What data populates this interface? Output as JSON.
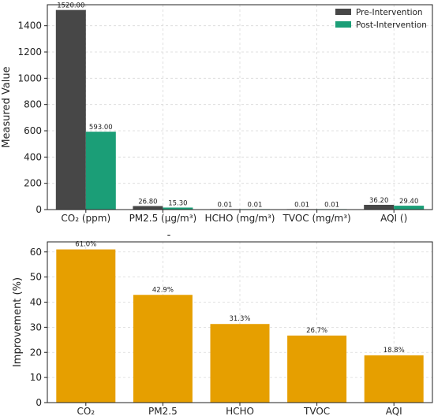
{
  "chart_data": [
    {
      "type": "bar",
      "categories": [
        "CO₂ (ppm)",
        "PM2.5 (µg/m³)",
        "HCHO (mg/m³)",
        "TVOC (mg/m³)",
        "AQI ()"
      ],
      "series": [
        {
          "name": "Pre-Intervention",
          "color": "#474747",
          "values": [
            1520.0,
            26.8,
            0.01,
            0.01,
            36.2
          ],
          "labels": [
            "1520.00",
            "26.80",
            "0.01",
            "0.01",
            "36.20"
          ]
        },
        {
          "name": "Post-Intervention",
          "color": "#1b9e77",
          "values": [
            593.0,
            15.3,
            0.01,
            0.01,
            29.4
          ],
          "labels": [
            "593.00",
            "15.30",
            "0.01",
            "0.01",
            "29.40"
          ]
        }
      ],
      "ylabel": "Measured Value",
      "ylim": [
        0,
        1560
      ],
      "yticks": [
        0,
        200,
        400,
        600,
        800,
        1000,
        1200,
        1400
      ],
      "grid": true,
      "legend": "top-right"
    },
    {
      "type": "bar",
      "title": "-",
      "categories": [
        "CO₂",
        "PM2.5",
        "HCHO",
        "TVOC",
        "AQI"
      ],
      "values": [
        61.0,
        42.9,
        31.3,
        26.7,
        18.8
      ],
      "labels": [
        "61.0%",
        "42.9%",
        "31.3%",
        "26.7%",
        "18.8%"
      ],
      "color": "#e69f00",
      "ylabel": "Improvement (%)",
      "ylim": [
        0,
        64
      ],
      "yticks": [
        0,
        10,
        20,
        30,
        40,
        50,
        60
      ],
      "grid": true
    }
  ]
}
